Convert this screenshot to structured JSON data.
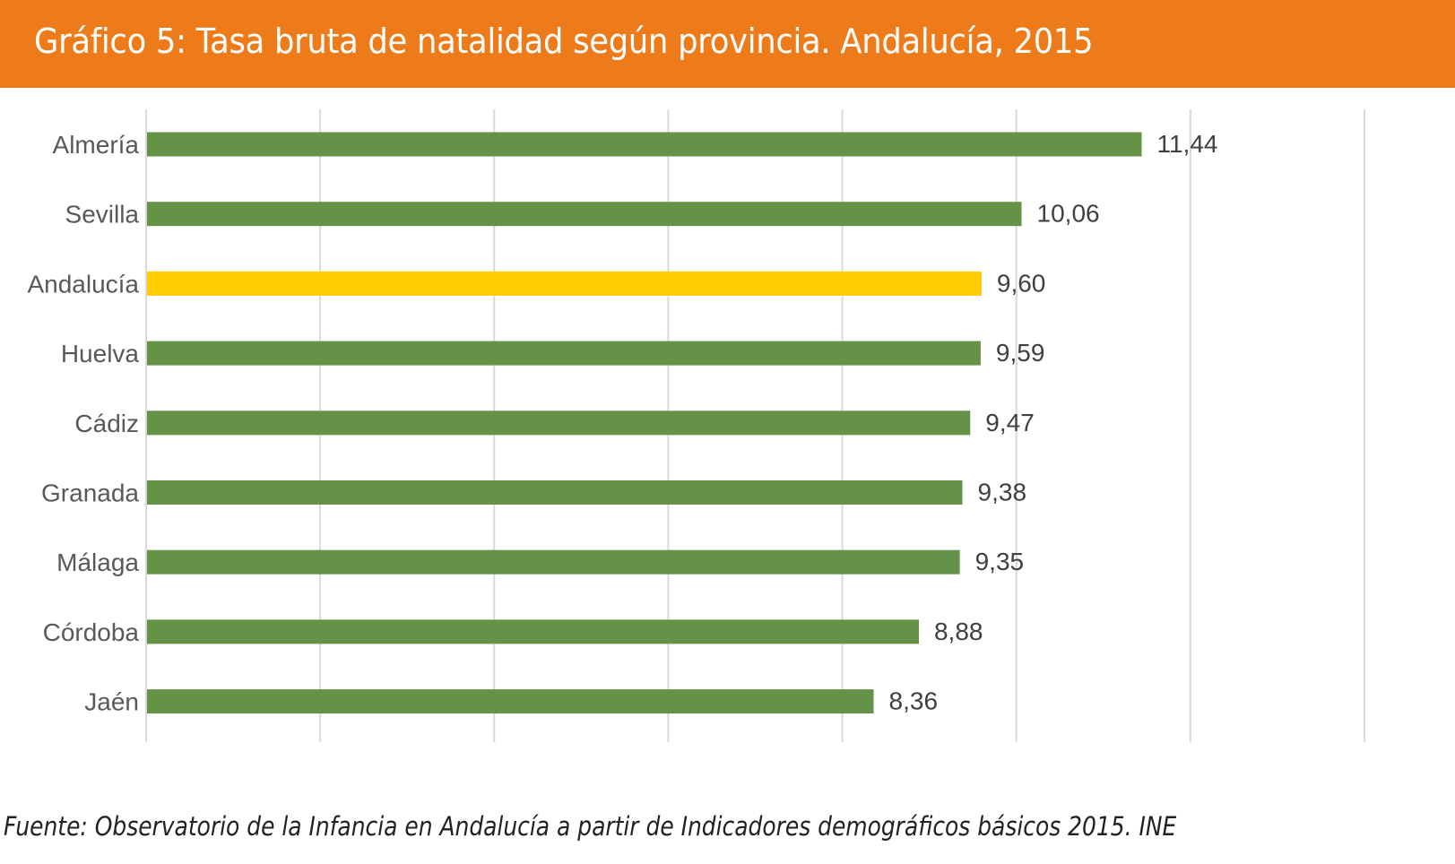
{
  "header": {
    "title": "Gráfico 5: Tasa bruta de natalidad según provincia. Andalucía, 2015"
  },
  "colors": {
    "header_bg": "#ee7b1a",
    "bar_default": "#659246",
    "bar_highlight": "#ffcc00",
    "gridline": "#d9d9d9"
  },
  "chart_data": {
    "type": "bar",
    "orientation": "horizontal",
    "title": "Gráfico 5: Tasa bruta de natalidad según provincia. Andalucía, 2015",
    "xlabel": "",
    "ylabel": "",
    "xlim": [
      0,
      14
    ],
    "grid_step": 2,
    "grid": true,
    "legend": "none",
    "categories": [
      "Almería",
      "Sevilla",
      "Andalucía",
      "Huelva",
      "Cádiz",
      "Granada",
      "Málaga",
      "Córdoba",
      "Jaén"
    ],
    "values": [
      11.44,
      10.06,
      9.6,
      9.59,
      9.47,
      9.38,
      9.35,
      8.88,
      8.36
    ],
    "value_labels": [
      "11,44",
      "10,06",
      "9,60",
      "9,59",
      "9,47",
      "9,38",
      "9,35",
      "8,88",
      "8,36"
    ],
    "highlight": "Andalucía"
  },
  "footer": {
    "source": "Fuente:  Observatorio de la Infancia en Andalucía a partir de Indicadores demográficos básicos 2015. INE"
  }
}
